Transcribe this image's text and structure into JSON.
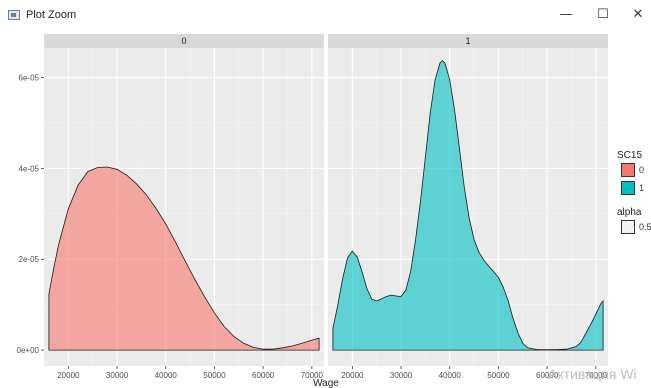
{
  "window": {
    "title": "Plot Zoom",
    "minimize_glyph": "—",
    "maximize_glyph": "☐",
    "close_glyph": "✕"
  },
  "watermark": "Активация Wi",
  "chart_data": {
    "type": "area",
    "subtype": "density",
    "facets": [
      "0",
      "1"
    ],
    "xlabel": "Wage",
    "ylabel": "",
    "xlim": [
      15000,
      72500
    ],
    "ylim": [
      -3.5e-06,
      6.65e-05
    ],
    "x_ticks": [
      20000,
      30000,
      40000,
      50000,
      60000,
      70000
    ],
    "y_ticks": [
      0,
      2e-05,
      4e-05,
      6e-05
    ],
    "y_tick_labels": [
      "0e+00",
      "2e-05",
      "4e-05",
      "6e-05"
    ],
    "grid": true,
    "legend_position": "right",
    "legend": {
      "fill_title": "SC15",
      "fill_entries": [
        {
          "label": "0",
          "color": "#F8766D"
        },
        {
          "label": "1",
          "color": "#00BFC4"
        }
      ],
      "alpha_title": "alpha",
      "alpha_entries": [
        {
          "label": "0.5"
        }
      ]
    },
    "series": [
      {
        "facet": "0",
        "fill_level": "0",
        "color": "#F8766D",
        "alpha": 0.6,
        "x": [
          16000,
          17000,
          18000,
          20000,
          22000,
          24000,
          26000,
          28000,
          30000,
          32000,
          34000,
          36000,
          38000,
          40000,
          42000,
          44000,
          46000,
          48000,
          50000,
          52000,
          54000,
          56000,
          58000,
          60000,
          62000,
          64000,
          66000,
          68000,
          70000,
          71500
        ],
        "y": [
          1.23e-05,
          1.8e-05,
          2.32e-05,
          3.11e-05,
          3.63e-05,
          3.93e-05,
          4.02e-05,
          4.03e-05,
          3.98e-05,
          3.85e-05,
          3.66e-05,
          3.42e-05,
          3.12e-05,
          2.78e-05,
          2.38e-05,
          1.96e-05,
          1.55e-05,
          1.17e-05,
          8.2e-06,
          5.2e-06,
          3e-06,
          1.5e-06,
          6e-07,
          2e-07,
          2e-07,
          5e-07,
          9e-07,
          1.5e-06,
          2.2e-06,
          2.6e-06
        ]
      },
      {
        "facet": "1",
        "fill_level": "1",
        "color": "#00BFC4",
        "alpha": 0.6,
        "x": [
          16000,
          17000,
          18000,
          19000,
          20000,
          21000,
          22000,
          23000,
          24000,
          25000,
          26000,
          27000,
          28000,
          29000,
          30000,
          31000,
          32000,
          33000,
          34000,
          35000,
          36000,
          37000,
          38000,
          38500,
          39000,
          40000,
          41000,
          42000,
          43000,
          44000,
          45000,
          46000,
          47000,
          48000,
          49000,
          50000,
          51000,
          52000,
          53000,
          54000,
          55000,
          56000,
          58000,
          60000,
          62000,
          64000,
          66000,
          67000,
          68000,
          69000,
          70000,
          71000,
          71500
        ],
        "y": [
          4.8e-06,
          9.8e-06,
          1.57e-05,
          2.03e-05,
          2.18e-05,
          2.05e-05,
          1.72e-05,
          1.35e-05,
          1.12e-05,
          1.08e-05,
          1.13e-05,
          1.18e-05,
          1.21e-05,
          1.19e-05,
          1.18e-05,
          1.32e-05,
          1.75e-05,
          2.45e-05,
          3.28e-05,
          4.25e-05,
          5.23e-05,
          5.95e-05,
          6.32e-05,
          6.37e-05,
          6.32e-05,
          5.95e-05,
          5.28e-05,
          4.43e-05,
          3.58e-05,
          2.9e-05,
          2.43e-05,
          2.15e-05,
          1.98e-05,
          1.85e-05,
          1.73e-05,
          1.6e-05,
          1.38e-05,
          1.08e-05,
          7e-06,
          3.8e-06,
          1.5e-06,
          5e-07,
          1e-07,
          1e-07,
          1e-07,
          2e-07,
          8e-07,
          1.8e-06,
          3.8e-06,
          5.8e-06,
          7.9e-06,
          1.02e-05,
          1.08e-05
        ]
      }
    ]
  }
}
